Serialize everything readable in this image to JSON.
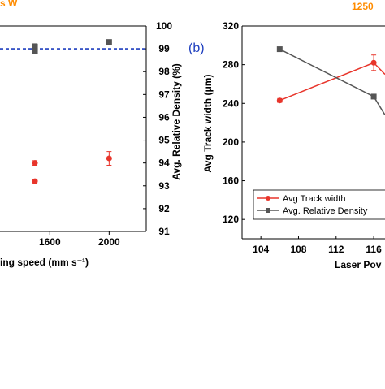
{
  "chart_data": [
    {
      "panel_label": "",
      "type": "scatter",
      "title": "s W",
      "title_color": "#ff8c00",
      "xlabel": "ing speed (mm s⁻¹)",
      "ylabel_right": "Avg. Relative Density (%)",
      "xlim": [
        1100,
        2250
      ],
      "ylim": [
        91,
        100
      ],
      "x_ticks": [
        {
          "value": 1600,
          "label": "1600"
        },
        {
          "value": 2000,
          "label": "2000"
        }
      ],
      "y_ticks": [
        {
          "value": 91,
          "label": "91"
        },
        {
          "value": 92,
          "label": "92"
        },
        {
          "value": 93,
          "label": "93"
        },
        {
          "value": 94,
          "label": "94"
        },
        {
          "value": 95,
          "label": "95"
        },
        {
          "value": 96,
          "label": "96"
        },
        {
          "value": 97,
          "label": "97"
        },
        {
          "value": 98,
          "label": "98"
        },
        {
          "value": 99,
          "label": "99"
        },
        {
          "value": 100,
          "label": "100"
        }
      ],
      "reference_line": {
        "y": 99,
        "color": "#1f3fbf",
        "style": "dashed"
      },
      "series": [
        {
          "color": "#555555",
          "marker": "square",
          "points": [
            {
              "x": 1500,
              "y": 99.1,
              "err": 0.12
            },
            {
              "x": 1500,
              "y": 98.9,
              "err": 0
            },
            {
              "x": 2000,
              "y": 99.3,
              "err": 0
            }
          ]
        },
        {
          "color": "#e8352b",
          "marker": "circle",
          "points": [
            {
              "x": 1500,
              "y": 94.0,
              "err": 0.1
            },
            {
              "x": 1500,
              "y": 93.2,
              "err": 0.08
            },
            {
              "x": 2000,
              "y": 94.2,
              "err": 0.3
            }
          ]
        }
      ]
    },
    {
      "panel_label": "(b)",
      "panel_label_color": "#1f3fbf",
      "type": "line",
      "title": "1250",
      "title_color": "#ff8c00",
      "xlabel": "Laser Pov",
      "ylabel": "Avg Track width (μm)",
      "xlim": [
        102,
        117.2
      ],
      "ylim": [
        100,
        320
      ],
      "x_ticks": [
        {
          "value": 104,
          "label": "104"
        },
        {
          "value": 108,
          "label": "108"
        },
        {
          "value": 112,
          "label": "112"
        },
        {
          "value": 116,
          "label": "116"
        }
      ],
      "y_ticks": [
        {
          "value": 120,
          "label": "120"
        },
        {
          "value": 160,
          "label": "160"
        },
        {
          "value": 200,
          "label": "200"
        },
        {
          "value": 240,
          "label": "240"
        },
        {
          "value": 280,
          "label": "280"
        },
        {
          "value": 320,
          "label": "320"
        }
      ],
      "series": [
        {
          "name": "Avg Track width",
          "color": "#e8352b",
          "marker": "circle",
          "points": [
            {
              "x": 106,
              "y": 243,
              "err": 2
            },
            {
              "x": 116,
              "y": 282,
              "err": 8
            },
            {
              "x": 117.2,
              "y": 270,
              "err": 0
            }
          ]
        },
        {
          "name": "Avg. Relative Density",
          "color": "#555555",
          "marker": "square",
          "points": [
            {
              "x": 106,
              "y": 296,
              "err": 0
            },
            {
              "x": 116,
              "y": 247,
              "err": 0
            },
            {
              "x": 117.2,
              "y": 228,
              "err": 0
            }
          ]
        }
      ],
      "legend": {
        "position": "bottom-right",
        "entries": [
          "Avg Track width",
          "Avg. Relative Density"
        ]
      }
    }
  ]
}
